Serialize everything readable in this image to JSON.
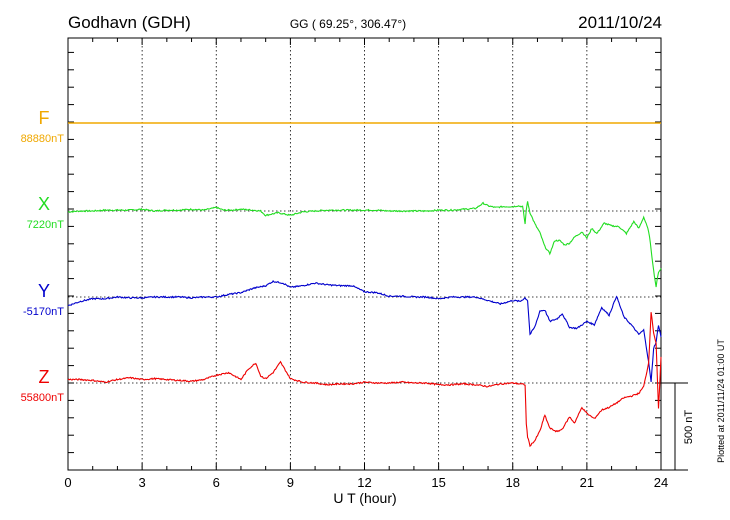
{
  "header": {
    "station": "Godhavn (GDH)",
    "coords": "GG ( 69.25°, 306.47°)",
    "date": "2011/10/24"
  },
  "side_note": "Plotted at 2011/11/24 01:00 UT",
  "chart_data": {
    "type": "line",
    "title": "Godhavn (GDH)",
    "xlabel": "U T (hour)",
    "xlim": [
      0,
      24
    ],
    "x_ticks": [
      "0",
      "3",
      "6",
      "9",
      "12",
      "15",
      "18",
      "21",
      "24"
    ],
    "grid": "dotted",
    "scale_bar": {
      "value": 500,
      "label": "500 nT"
    },
    "colors": {
      "F": "#f0a800",
      "X": "#22dd22",
      "Y": "#0000cc",
      "Z": "#ee0000"
    },
    "series": [
      {
        "name": "F",
        "baseline": "88880nT",
        "baseline_nT": 88880,
        "x": [
          0,
          24
        ],
        "y": [
          0,
          0
        ]
      },
      {
        "name": "X",
        "baseline": "7220nT",
        "baseline_nT": 7220,
        "x": [
          0,
          0.5,
          1,
          1.5,
          2,
          2.5,
          3,
          3.5,
          4,
          4.5,
          5,
          5.5,
          6,
          6.3,
          6.6,
          7,
          7.5,
          7.8,
          8,
          8.5,
          9,
          9.5,
          10,
          10.5,
          11,
          11.5,
          12,
          12.5,
          13,
          13.5,
          14,
          14.5,
          15,
          15.5,
          16,
          16.5,
          16.8,
          17,
          17.3,
          17.6,
          18,
          18.2,
          18.4,
          18.5,
          18.55,
          18.6,
          18.7,
          18.9,
          19.1,
          19.3,
          19.5,
          19.7,
          19.9,
          20.1,
          20.3,
          20.5,
          20.8,
          21,
          21.2,
          21.4,
          21.7,
          22,
          22.3,
          22.6,
          22.9,
          23.1,
          23.3,
          23.5,
          23.6,
          23.7,
          23.8,
          23.9,
          24
        ],
        "y": [
          -5,
          0,
          0,
          5,
          5,
          5,
          10,
          0,
          5,
          5,
          10,
          5,
          20,
          5,
          5,
          10,
          5,
          0,
          -25,
          -10,
          -25,
          -5,
          0,
          5,
          5,
          5,
          5,
          5,
          0,
          0,
          0,
          0,
          5,
          5,
          10,
          15,
          45,
          30,
          20,
          25,
          25,
          30,
          25,
          -75,
          10,
          55,
          -10,
          -75,
          -125,
          -205,
          -245,
          -170,
          -170,
          -195,
          -185,
          -150,
          -120,
          -155,
          -100,
          -130,
          -70,
          -85,
          -90,
          -130,
          -60,
          -100,
          -35,
          -115,
          -220,
          -340,
          -435,
          -350,
          -330
        ]
      },
      {
        "name": "Y",
        "baseline": "-5170nT",
        "baseline_nT": -5170,
        "x": [
          0,
          0.5,
          1,
          1.5,
          2,
          2.5,
          3,
          3.5,
          4,
          4.5,
          5,
          5.5,
          6,
          6.5,
          7,
          7.5,
          8,
          8.3,
          8.7,
          9,
          9.5,
          10,
          10.5,
          11,
          11.5,
          12,
          12.5,
          13,
          13.5,
          14,
          14.5,
          15,
          15.5,
          16,
          16.5,
          17,
          17.5,
          18,
          18.3,
          18.5,
          18.6,
          18.7,
          18.9,
          19.1,
          19.3,
          19.5,
          19.8,
          20,
          20.3,
          20.6,
          21,
          21.3,
          21.6,
          21.9,
          22.2,
          22.5,
          22.8,
          23.1,
          23.3,
          23.5,
          23.6,
          23.7,
          23.8,
          23.9,
          24
        ],
        "y": [
          -50,
          -25,
          -10,
          -10,
          0,
          -5,
          -5,
          0,
          0,
          0,
          -5,
          0,
          0,
          15,
          25,
          50,
          65,
          90,
          80,
          55,
          65,
          80,
          70,
          65,
          65,
          30,
          25,
          5,
          5,
          0,
          0,
          -10,
          0,
          0,
          0,
          -20,
          -40,
          -20,
          -25,
          -5,
          -20,
          -215,
          -170,
          -80,
          -75,
          -140,
          -125,
          -95,
          -175,
          -180,
          -140,
          -160,
          -60,
          -105,
          5,
          -115,
          -160,
          -215,
          -190,
          -375,
          -490,
          -295,
          -260,
          -160,
          -230
        ]
      },
      {
        "name": "Z",
        "baseline": "55800nT",
        "baseline_nT": 55800,
        "x": [
          0,
          0.5,
          1,
          1.5,
          2,
          2.5,
          3,
          3.5,
          4,
          4.5,
          5,
          5.5,
          6,
          6.5,
          7,
          7.3,
          7.6,
          7.8,
          8,
          8.3,
          8.6,
          9,
          9.5,
          10,
          10.5,
          11,
          11.5,
          12,
          12.5,
          13,
          13.5,
          14,
          14.5,
          15,
          15.5,
          16,
          16.5,
          17,
          17.5,
          18,
          18.3,
          18.5,
          18.55,
          18.6,
          18.7,
          18.9,
          19.1,
          19.3,
          19.5,
          19.8,
          20,
          20.3,
          20.5,
          20.8,
          21,
          21.3,
          21.6,
          21.9,
          22.2,
          22.5,
          22.8,
          23.1,
          23.3,
          23.5,
          23.6,
          23.7,
          23.8,
          23.9,
          24
        ],
        "y": [
          20,
          20,
          15,
          5,
          20,
          30,
          20,
          25,
          20,
          15,
          10,
          20,
          45,
          60,
          20,
          80,
          115,
          40,
          25,
          60,
          120,
          25,
          5,
          0,
          -10,
          -5,
          -5,
          5,
          0,
          0,
          5,
          0,
          0,
          -10,
          -10,
          -5,
          -10,
          -20,
          -5,
          0,
          -5,
          -10,
          -235,
          -310,
          -360,
          -330,
          -275,
          -185,
          -260,
          -280,
          -265,
          -195,
          -230,
          -140,
          -175,
          -205,
          -155,
          -140,
          -115,
          -85,
          -75,
          -60,
          -20,
          115,
          410,
          290,
          230,
          -150,
          150
        ]
      }
    ]
  }
}
